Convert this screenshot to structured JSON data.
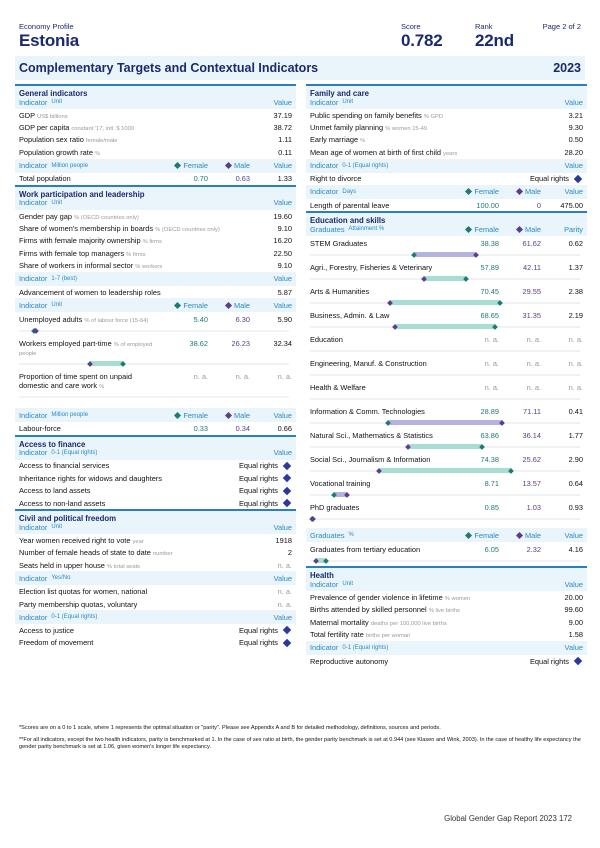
{
  "header": {
    "profile_label": "Economy Profile",
    "country": "Estonia",
    "score_label": "Score",
    "score": "0.782",
    "rank_label": "Rank",
    "rank": "22nd",
    "page": "Page 2 of 2"
  },
  "title": {
    "text": "Complementary Targets and Contextual Indicators",
    "year": "2023"
  },
  "labels": {
    "indicator": "Indicator",
    "unit": "Unit",
    "value": "Value",
    "female": "Female",
    "male": "Male",
    "graduates": "Graduates",
    "parity": "Parity",
    "equal_rights": "Equal rights",
    "na": "n. a.",
    "million_people": "Million people",
    "best": "1-7 (best)",
    "equal01": "0-1 (Equal rights)",
    "yesno": "Yes/No",
    "days": "Days",
    "attainment": "Attainment %",
    "pct": "%"
  },
  "colors": {
    "navy": "#1a2a6c",
    "accent_blue": "#2a7fc0",
    "female": "#1f7a74",
    "male": "#5a3d8e",
    "section_bg": "#eaf4fb"
  },
  "general": {
    "title": "General indicators",
    "rows": [
      {
        "label": "GDP",
        "unit": "US$ billions",
        "value": "37.19"
      },
      {
        "label": "GDP per capita",
        "unit": "constant '17, intl. $ 1000",
        "value": "38.72"
      },
      {
        "label": "Population sex ratio",
        "unit": "female/male",
        "value": "1.11"
      },
      {
        "label": "Population growth rate",
        "unit": "%",
        "value": "0.11"
      }
    ],
    "pop": {
      "label": "Total population",
      "female": "0.70",
      "male": "0.63",
      "value": "1.33"
    }
  },
  "work": {
    "title": "Work participation and leadership",
    "rows": [
      {
        "label": "Gender pay gap",
        "unit": "% (OECD countries only)",
        "value": "19.60"
      },
      {
        "label": "Share of women's membership in boards",
        "unit": "% (OECD countries only)",
        "value": "9.10"
      },
      {
        "label": "Firms with female majority ownership",
        "unit": "% firms",
        "value": "16.20"
      },
      {
        "label": "Firms with female top managers",
        "unit": "% firms",
        "value": "22.50"
      },
      {
        "label": "Share of workers in informal sector",
        "unit": "% workers",
        "value": "9.10"
      }
    ],
    "adv": {
      "label": "Advancement of women to leadership roles",
      "value": "5.87"
    },
    "fm": [
      {
        "label": "Unemployed adults",
        "unit": "% of labour force (15-64)",
        "female": "5.40",
        "male": "6.30",
        "value": "5.90"
      },
      {
        "label": "Workers employed part-time",
        "unit": "% of employed people",
        "female": "38.62",
        "male": "26.23",
        "value": "32.34"
      },
      {
        "label": "Proportion of time spent on unpaid domestic and care work",
        "unit": "%",
        "female": "n. a.",
        "male": "n. a.",
        "value": "n. a."
      }
    ],
    "labour": {
      "label": "Labour-force",
      "female": "0.33",
      "male": "0.34",
      "value": "0.66"
    }
  },
  "finance": {
    "title": "Access to finance",
    "rows": [
      {
        "label": "Access to financial services",
        "value": "Equal rights"
      },
      {
        "label": "Inheritance rights for widows and daughters",
        "value": "Equal rights"
      },
      {
        "label": "Access to land assets",
        "value": "Equal rights"
      },
      {
        "label": "Access to non-land assets",
        "value": "Equal rights"
      }
    ]
  },
  "civil": {
    "title": "Civil and political freedom",
    "rows": [
      {
        "label": "Year women received right to vote",
        "unit": "year",
        "value": "1918"
      },
      {
        "label": "Number of female heads of state to date",
        "unit": "number",
        "value": "2"
      },
      {
        "label": "Seats held in upper house",
        "unit": "% total seats",
        "value": "n. a."
      }
    ],
    "quotas": [
      {
        "label": "Election list quotas for women, national",
        "value": "n. a."
      },
      {
        "label": "Party membership quotas, voluntary",
        "value": "n. a."
      }
    ],
    "rights": [
      {
        "label": "Access to justice",
        "value": "Equal rights"
      },
      {
        "label": "Freedom of movement",
        "value": "Equal rights"
      }
    ]
  },
  "family": {
    "title": "Family and care",
    "rows": [
      {
        "label": "Public spending on family benefits",
        "unit": "% GPD",
        "value": "3.21"
      },
      {
        "label": "Unmet family planning",
        "unit": "% women 15-49",
        "value": "9.30"
      },
      {
        "label": "Early marriage",
        "unit": "%",
        "value": "0.50"
      },
      {
        "label": "Mean age of women at birth of first child",
        "unit": "years",
        "value": "28.20"
      }
    ],
    "divorce": {
      "label": "Right to divorce",
      "value": "Equal rights"
    },
    "leave": {
      "label": "Length of parental leave",
      "female": "100.00",
      "male": "0",
      "value": "475.00"
    }
  },
  "education": {
    "title": "Education and skills",
    "rows": [
      {
        "label": "STEM Graduates",
        "female": "38.38",
        "male": "61.62",
        "value": "0.62",
        "fpos": 38.38,
        "mpos": 61.62
      },
      {
        "label": "Agri., Forestry, Fisheries & Veterinary",
        "female": "57.89",
        "male": "42.11",
        "value": "1.37",
        "fpos": 57.89,
        "mpos": 42.11
      },
      {
        "label": "Arts & Humanities",
        "female": "70.45",
        "male": "29.55",
        "value": "2.38",
        "fpos": 70.45,
        "mpos": 29.55
      },
      {
        "label": "Business, Admin. & Law",
        "female": "68.65",
        "male": "31.35",
        "value": "2.19",
        "fpos": 68.65,
        "mpos": 31.35
      },
      {
        "label": "Education",
        "female": "n. a.",
        "male": "n. a.",
        "value": "n. a."
      },
      {
        "label": "Engineering, Manuf. & Construction",
        "female": "n. a.",
        "male": "n. a.",
        "value": "n. a."
      },
      {
        "label": "Health & Welfare",
        "female": "n. a.",
        "male": "n. a.",
        "value": "n. a."
      },
      {
        "label": "Information & Comm. Technologies",
        "female": "28.89",
        "male": "71.11",
        "value": "0.41",
        "fpos": 28.89,
        "mpos": 71.11
      },
      {
        "label": "Natural Sci., Mathematics & Statistics",
        "female": "63.86",
        "male": "36.14",
        "value": "1.77",
        "fpos": 63.86,
        "mpos": 36.14
      },
      {
        "label": "Social Sci., Journalism & Information",
        "female": "74.38",
        "male": "25.62",
        "value": "2.90",
        "fpos": 74.38,
        "mpos": 25.62
      },
      {
        "label": "Vocational training",
        "female": "8.71",
        "male": "13.57",
        "value": "0.64",
        "fpos": 8.71,
        "mpos": 13.57
      },
      {
        "label": "PhD graduates",
        "female": "0.85",
        "male": "1.03",
        "value": "0.93",
        "fpos": 0.85,
        "mpos": 1.03
      }
    ],
    "tertiary": {
      "label": "Graduates from tertiary education",
      "female": "6.05",
      "male": "2.32",
      "value": "4.16",
      "fpos": 6.05,
      "mpos": 2.32
    }
  },
  "health": {
    "title": "Health",
    "rows": [
      {
        "label": "Prevalence of gender violence in lifetime",
        "unit": "% women",
        "value": "20.00"
      },
      {
        "label": "Births attended by skilled personnel",
        "unit": "% live births",
        "value": "99.60"
      },
      {
        "label": "Maternal mortality",
        "unit": "deaths per 100,000 live births",
        "value": "9.00"
      },
      {
        "label": "Total fertility rate",
        "unit": "births per woman",
        "value": "1.58"
      }
    ],
    "repro": {
      "label": "Reproductive autonomy",
      "value": "Equal rights"
    }
  },
  "footnotes": [
    "*Scores are on a 0 to 1 scale, where 1 represents the optimal situation or \"parity\". Please see Appendix A and B for detailed methodology, definitions, sources and periods.",
    "**For all indicators, except the two health indicators, parity is benchmarked at 1. In the case of sex ratio at birth, the gender parity benchmark is set at 0.944 (see Klasen and Wink, 2003). In the case of healthy life expectancy the gender parity benchmark is set at 1.06, given women's longer life expectancy."
  ],
  "footer": "Global Gender Gap Report 2023   172"
}
